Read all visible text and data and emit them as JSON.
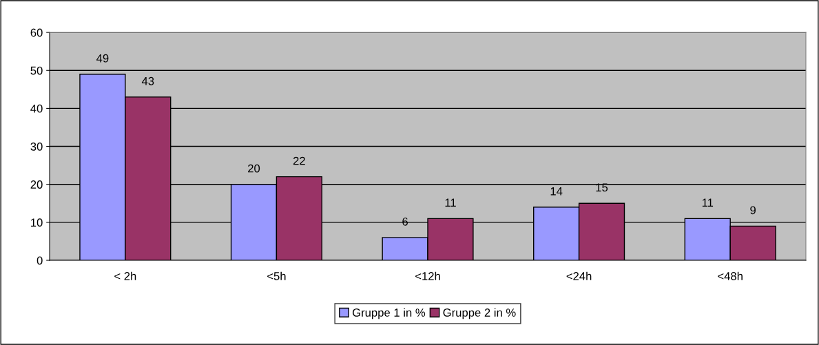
{
  "chart_data": {
    "type": "bar",
    "categories": [
      "< 2h",
      "<5h",
      "<12h",
      "<24h",
      "<48h"
    ],
    "series": [
      {
        "name": "Gruppe 1 in %",
        "color": "#9999ff",
        "values": [
          49,
          20,
          6,
          14,
          11
        ]
      },
      {
        "name": "Gruppe 2 in %",
        "color": "#993366",
        "values": [
          43,
          22,
          11,
          15,
          9
        ]
      }
    ],
    "ylim": [
      0,
      60
    ],
    "yticks": [
      0,
      10,
      20,
      30,
      40,
      50,
      60
    ],
    "grid": "y",
    "legend": "bottom",
    "data_labels": true
  }
}
